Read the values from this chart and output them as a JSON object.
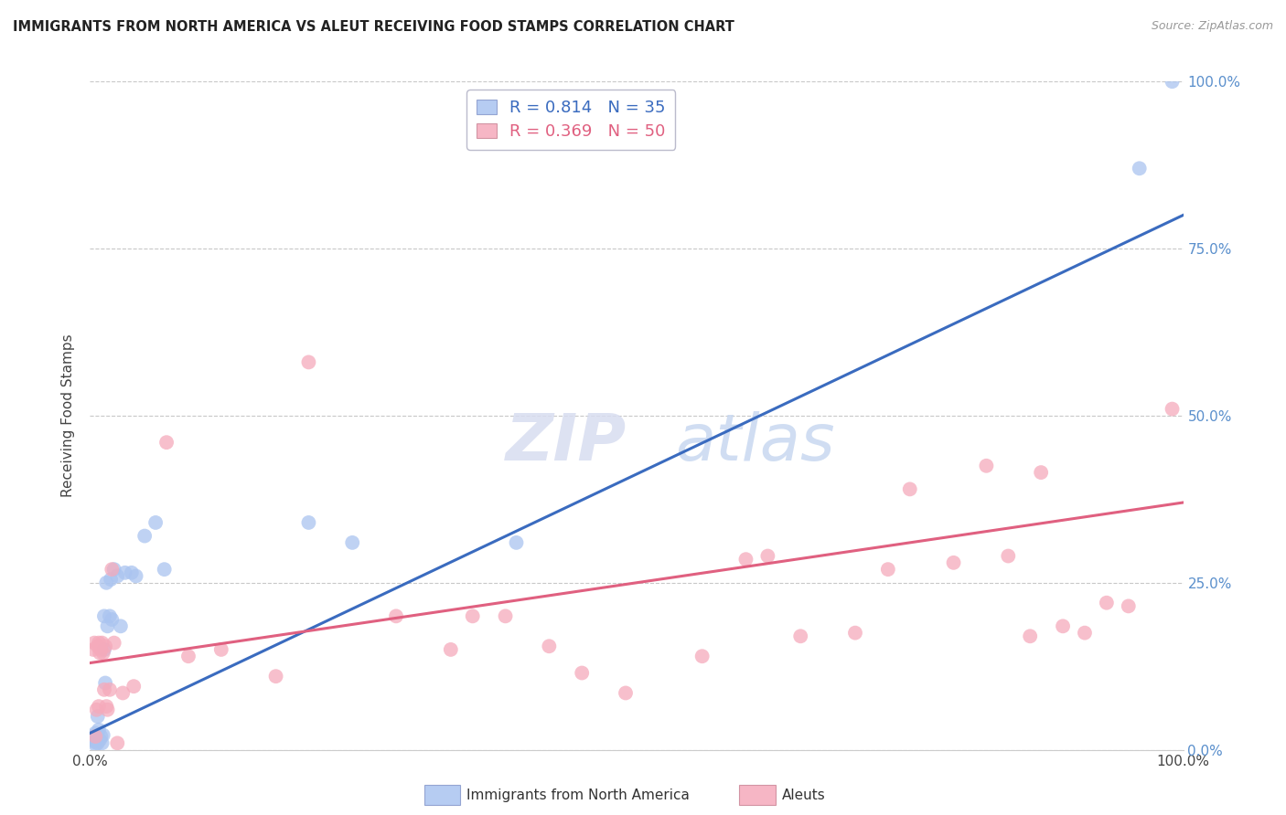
{
  "title": "IMMIGRANTS FROM NORTH AMERICA VS ALEUT RECEIVING FOOD STAMPS CORRELATION CHART",
  "source": "Source: ZipAtlas.com",
  "ylabel": "Receiving Food Stamps",
  "xlim": [
    0,
    1
  ],
  "ylim": [
    0,
    1
  ],
  "ytick_labels": [
    "0.0%",
    "25.0%",
    "50.0%",
    "75.0%",
    "100.0%"
  ],
  "ytick_values": [
    0.0,
    0.25,
    0.5,
    0.75,
    1.0
  ],
  "grid_color": "#c8c8c8",
  "background_color": "#ffffff",
  "blue_R": 0.814,
  "blue_N": 35,
  "pink_R": 0.369,
  "pink_N": 50,
  "blue_color": "#aac4f0",
  "pink_color": "#f5aabb",
  "blue_line_color": "#3a6bbf",
  "pink_line_color": "#e06080",
  "right_label_color": "#5a8fcc",
  "legend_label_blue": "Immigrants from North America",
  "legend_label_pink": "Aleuts",
  "watermark_zip": "ZIP",
  "watermark_atlas": "atlas",
  "blue_points_x": [
    0.002,
    0.003,
    0.004,
    0.005,
    0.005,
    0.006,
    0.007,
    0.007,
    0.008,
    0.009,
    0.01,
    0.011,
    0.012,
    0.013,
    0.013,
    0.014,
    0.015,
    0.016,
    0.018,
    0.019,
    0.02,
    0.022,
    0.025,
    0.028,
    0.032,
    0.038,
    0.042,
    0.05,
    0.06,
    0.068,
    0.2,
    0.24,
    0.39,
    0.96,
    0.99
  ],
  "blue_points_y": [
    0.02,
    0.015,
    0.012,
    0.025,
    0.008,
    0.018,
    0.05,
    0.01,
    0.03,
    0.015,
    0.02,
    0.01,
    0.022,
    0.2,
    0.15,
    0.1,
    0.25,
    0.185,
    0.2,
    0.255,
    0.195,
    0.27,
    0.26,
    0.185,
    0.265,
    0.265,
    0.26,
    0.32,
    0.34,
    0.27,
    0.34,
    0.31,
    0.31,
    0.87,
    1.0
  ],
  "pink_points_x": [
    0.003,
    0.004,
    0.005,
    0.006,
    0.007,
    0.008,
    0.008,
    0.009,
    0.01,
    0.011,
    0.012,
    0.013,
    0.014,
    0.015,
    0.016,
    0.018,
    0.02,
    0.022,
    0.025,
    0.03,
    0.04,
    0.07,
    0.09,
    0.12,
    0.17,
    0.2,
    0.28,
    0.33,
    0.35,
    0.38,
    0.42,
    0.45,
    0.49,
    0.56,
    0.6,
    0.62,
    0.65,
    0.7,
    0.73,
    0.75,
    0.79,
    0.82,
    0.84,
    0.86,
    0.87,
    0.89,
    0.91,
    0.93,
    0.95,
    0.99
  ],
  "pink_points_y": [
    0.15,
    0.16,
    0.02,
    0.06,
    0.155,
    0.16,
    0.065,
    0.145,
    0.15,
    0.16,
    0.145,
    0.09,
    0.155,
    0.065,
    0.06,
    0.09,
    0.27,
    0.16,
    0.01,
    0.085,
    0.095,
    0.46,
    0.14,
    0.15,
    0.11,
    0.58,
    0.2,
    0.15,
    0.2,
    0.2,
    0.155,
    0.115,
    0.085,
    0.14,
    0.285,
    0.29,
    0.17,
    0.175,
    0.27,
    0.39,
    0.28,
    0.425,
    0.29,
    0.17,
    0.415,
    0.185,
    0.175,
    0.22,
    0.215,
    0.51
  ],
  "blue_line_x": [
    0.0,
    1.0
  ],
  "blue_line_y": [
    0.025,
    0.8
  ],
  "pink_line_x": [
    0.0,
    1.0
  ],
  "pink_line_y": [
    0.13,
    0.37
  ]
}
